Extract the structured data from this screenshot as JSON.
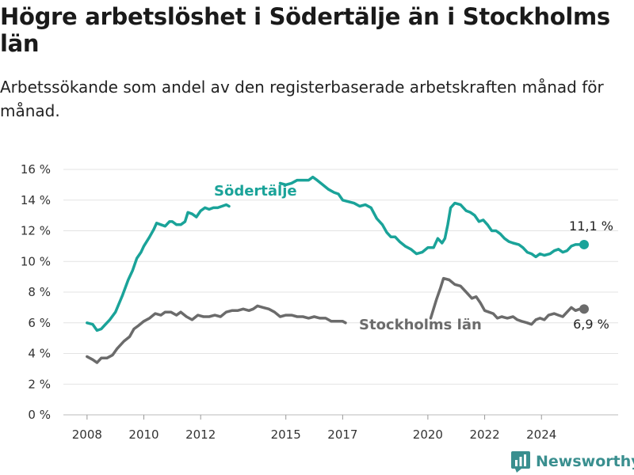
{
  "title": "Högre arbetslöshet i Södertälje än i Stockholms län",
  "subtitle": "Arbetssökande som andel av den registerbaserade arbetskraften månad för månad.",
  "brand": {
    "name": "Newsworthy",
    "color": "#3a8f8f"
  },
  "chart_data": {
    "type": "line",
    "title": "Högre arbetslöshet i Södertälje än i Stockholms län",
    "subtitle": "Arbetssökande som andel av den registerbaserade arbetskraften månad för månad.",
    "xlabel": "",
    "ylabel": "",
    "xlim": [
      2007.0,
      2026.7
    ],
    "ylim": [
      0,
      16
    ],
    "x_ticks": [
      2008,
      2010,
      2012,
      2015,
      2017,
      2020,
      2022,
      2024
    ],
    "x_tick_labels": [
      "2008",
      "2010",
      "2012",
      "2015",
      "2017",
      "2020",
      "2022",
      "2024"
    ],
    "y_ticks": [
      0,
      2,
      4,
      6,
      8,
      10,
      12,
      14,
      16
    ],
    "y_tick_labels": [
      "0 %",
      "2 %",
      "4 %",
      "6 %",
      "8 %",
      "10 %",
      "12 %",
      "14 %",
      "16 %"
    ],
    "grid": true,
    "series": [
      {
        "name": "Södertälje",
        "color": "#1aa399",
        "end_label": "11,1 %",
        "points": [
          [
            2008.0,
            6.0
          ],
          [
            2008.2,
            5.9
          ],
          [
            2008.35,
            5.5
          ],
          [
            2008.5,
            5.6
          ],
          [
            2008.65,
            5.9
          ],
          [
            2008.8,
            6.2
          ],
          [
            2009.0,
            6.7
          ],
          [
            2009.25,
            7.8
          ],
          [
            2009.45,
            8.8
          ],
          [
            2009.6,
            9.4
          ],
          [
            2009.75,
            10.2
          ],
          [
            2009.9,
            10.6
          ],
          [
            2010.0,
            11.0
          ],
          [
            2010.2,
            11.6
          ],
          [
            2010.35,
            12.1
          ],
          [
            2010.45,
            12.5
          ],
          [
            2010.6,
            12.4
          ],
          [
            2010.75,
            12.3
          ],
          [
            2010.9,
            12.6
          ],
          [
            2011.0,
            12.6
          ],
          [
            2011.15,
            12.4
          ],
          [
            2011.3,
            12.4
          ],
          [
            2011.45,
            12.6
          ],
          [
            2011.55,
            13.2
          ],
          [
            2011.7,
            13.1
          ],
          [
            2011.85,
            12.9
          ],
          [
            2012.0,
            13.3
          ],
          [
            2012.15,
            13.5
          ],
          [
            2012.3,
            13.4
          ],
          [
            2012.45,
            13.5
          ],
          [
            2012.6,
            13.5
          ],
          [
            2012.75,
            13.6
          ],
          [
            2012.9,
            13.7
          ],
          [
            2013.0,
            13.6
          ],
          [
            2014.8,
            15.1
          ],
          [
            2015.0,
            15.0
          ],
          [
            2015.2,
            15.1
          ],
          [
            2015.4,
            15.3
          ],
          [
            2015.6,
            15.3
          ],
          [
            2015.8,
            15.3
          ],
          [
            2015.95,
            15.5
          ],
          [
            2016.1,
            15.3
          ],
          [
            2016.3,
            15.0
          ],
          [
            2016.5,
            14.7
          ],
          [
            2016.7,
            14.5
          ],
          [
            2016.85,
            14.4
          ],
          [
            2017.0,
            14.0
          ],
          [
            2017.2,
            13.9
          ],
          [
            2017.4,
            13.8
          ],
          [
            2017.6,
            13.6
          ],
          [
            2017.8,
            13.7
          ],
          [
            2018.0,
            13.5
          ],
          [
            2018.2,
            12.8
          ],
          [
            2018.4,
            12.4
          ],
          [
            2018.55,
            11.9
          ],
          [
            2018.7,
            11.6
          ],
          [
            2018.85,
            11.6
          ],
          [
            2019.0,
            11.3
          ],
          [
            2019.2,
            11.0
          ],
          [
            2019.4,
            10.8
          ],
          [
            2019.6,
            10.5
          ],
          [
            2019.8,
            10.6
          ],
          [
            2020.0,
            10.9
          ],
          [
            2020.2,
            10.9
          ],
          [
            2020.35,
            11.5
          ],
          [
            2020.5,
            11.2
          ],
          [
            2020.6,
            11.5
          ],
          [
            2020.7,
            12.4
          ],
          [
            2020.8,
            13.5
          ],
          [
            2020.95,
            13.8
          ],
          [
            2021.15,
            13.7
          ],
          [
            2021.35,
            13.3
          ],
          [
            2021.5,
            13.2
          ],
          [
            2021.65,
            13.0
          ],
          [
            2021.8,
            12.6
          ],
          [
            2021.95,
            12.7
          ],
          [
            2022.1,
            12.4
          ],
          [
            2022.25,
            12.0
          ],
          [
            2022.4,
            12.0
          ],
          [
            2022.55,
            11.8
          ],
          [
            2022.7,
            11.5
          ],
          [
            2022.85,
            11.3
          ],
          [
            2023.0,
            11.2
          ],
          [
            2023.2,
            11.1
          ],
          [
            2023.35,
            10.9
          ],
          [
            2023.5,
            10.6
          ],
          [
            2023.65,
            10.5
          ],
          [
            2023.8,
            10.3
          ],
          [
            2023.95,
            10.5
          ],
          [
            2024.1,
            10.4
          ],
          [
            2024.3,
            10.5
          ],
          [
            2024.45,
            10.7
          ],
          [
            2024.6,
            10.8
          ],
          [
            2024.75,
            10.6
          ],
          [
            2024.9,
            10.7
          ],
          [
            2025.05,
            11.0
          ],
          [
            2025.2,
            11.1
          ],
          [
            2025.35,
            11.1
          ],
          [
            2025.5,
            11.1
          ]
        ]
      },
      {
        "name": "Stockholms län",
        "color": "#6b6b6b",
        "end_label": "6,9 %",
        "points": [
          [
            2008.0,
            3.8
          ],
          [
            2008.2,
            3.6
          ],
          [
            2008.35,
            3.4
          ],
          [
            2008.5,
            3.7
          ],
          [
            2008.7,
            3.7
          ],
          [
            2008.9,
            3.9
          ],
          [
            2009.05,
            4.3
          ],
          [
            2009.3,
            4.8
          ],
          [
            2009.5,
            5.1
          ],
          [
            2009.65,
            5.6
          ],
          [
            2009.8,
            5.8
          ],
          [
            2010.0,
            6.1
          ],
          [
            2010.2,
            6.3
          ],
          [
            2010.4,
            6.6
          ],
          [
            2010.6,
            6.5
          ],
          [
            2010.75,
            6.7
          ],
          [
            2010.95,
            6.7
          ],
          [
            2011.15,
            6.5
          ],
          [
            2011.3,
            6.7
          ],
          [
            2011.5,
            6.4
          ],
          [
            2011.7,
            6.2
          ],
          [
            2011.9,
            6.5
          ],
          [
            2012.1,
            6.4
          ],
          [
            2012.3,
            6.4
          ],
          [
            2012.5,
            6.5
          ],
          [
            2012.7,
            6.4
          ],
          [
            2012.9,
            6.7
          ],
          [
            2013.1,
            6.8
          ],
          [
            2013.3,
            6.8
          ],
          [
            2013.5,
            6.9
          ],
          [
            2013.7,
            6.8
          ],
          [
            2013.85,
            6.9
          ],
          [
            2014.0,
            7.1
          ],
          [
            2014.2,
            7.0
          ],
          [
            2014.4,
            6.9
          ],
          [
            2014.6,
            6.7
          ],
          [
            2014.8,
            6.4
          ],
          [
            2015.0,
            6.5
          ],
          [
            2015.2,
            6.5
          ],
          [
            2015.4,
            6.4
          ],
          [
            2015.6,
            6.4
          ],
          [
            2015.8,
            6.3
          ],
          [
            2016.0,
            6.4
          ],
          [
            2016.2,
            6.3
          ],
          [
            2016.4,
            6.3
          ],
          [
            2016.6,
            6.1
          ],
          [
            2016.8,
            6.1
          ],
          [
            2017.0,
            6.1
          ],
          [
            2017.1,
            6.0
          ],
          [
            2020.1,
            6.3
          ],
          [
            2020.3,
            7.5
          ],
          [
            2020.45,
            8.3
          ],
          [
            2020.55,
            8.9
          ],
          [
            2020.75,
            8.8
          ],
          [
            2020.95,
            8.5
          ],
          [
            2021.15,
            8.4
          ],
          [
            2021.35,
            8.0
          ],
          [
            2021.55,
            7.6
          ],
          [
            2021.7,
            7.7
          ],
          [
            2021.85,
            7.3
          ],
          [
            2022.0,
            6.8
          ],
          [
            2022.15,
            6.7
          ],
          [
            2022.3,
            6.6
          ],
          [
            2022.45,
            6.3
          ],
          [
            2022.6,
            6.4
          ],
          [
            2022.8,
            6.3
          ],
          [
            2023.0,
            6.4
          ],
          [
            2023.15,
            6.2
          ],
          [
            2023.3,
            6.1
          ],
          [
            2023.5,
            6.0
          ],
          [
            2023.65,
            5.9
          ],
          [
            2023.8,
            6.2
          ],
          [
            2023.95,
            6.3
          ],
          [
            2024.1,
            6.2
          ],
          [
            2024.25,
            6.5
          ],
          [
            2024.45,
            6.6
          ],
          [
            2024.6,
            6.5
          ],
          [
            2024.75,
            6.4
          ],
          [
            2024.9,
            6.7
          ],
          [
            2025.05,
            7.0
          ],
          [
            2025.2,
            6.8
          ],
          [
            2025.35,
            6.9
          ],
          [
            2025.5,
            6.9
          ]
        ]
      }
    ]
  }
}
